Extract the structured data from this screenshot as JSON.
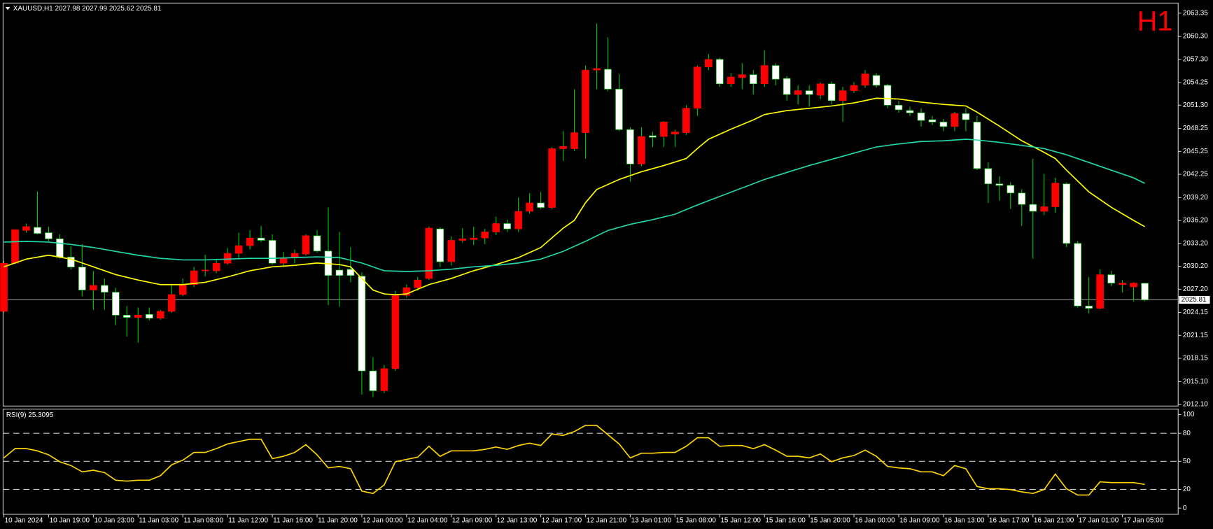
{
  "chart_data": {
    "type": "candlestick",
    "title": "XAUUSD,H1  2027.98 2027.99 2025.62 2025.81",
    "timeframe": "H1",
    "up_color": "#ff0000",
    "down_color": "#ffffff",
    "wick_color": "#00c800",
    "categories": [
      "10 Jan 2024",
      null,
      null,
      null,
      "10 Jan 19:00",
      null,
      null,
      null,
      "10 Jan 23:00",
      null,
      null,
      null,
      "11 Jan 03:00",
      null,
      null,
      null,
      "11 Jan 08:00",
      null,
      null,
      null,
      "11 Jan 12:00",
      null,
      null,
      null,
      "11 Jan 16:00",
      null,
      null,
      null,
      "11 Jan 20:00",
      null,
      null,
      null,
      "12 Jan 00:00",
      null,
      null,
      null,
      "12 Jan 04:00",
      null,
      null,
      null,
      "12 Jan 09:00",
      null,
      null,
      null,
      "12 Jan 13:00",
      null,
      null,
      null,
      "12 Jan 17:00",
      null,
      null,
      null,
      "12 Jan 21:00",
      null,
      null,
      null,
      "13 Jan 01:00",
      null,
      null,
      null,
      "15 Jan 08:00",
      null,
      null,
      null,
      "15 Jan 12:00",
      null,
      null,
      null,
      "15 Jan 16:00",
      null,
      null,
      null,
      "15 Jan 20:00",
      null,
      null,
      null,
      "16 Jan 00:00",
      null,
      null,
      null,
      "16 Jan 09:00",
      null,
      null,
      null,
      "16 Jan 13:00",
      null,
      null,
      null,
      "16 Jan 17:00",
      null,
      null,
      null,
      "16 Jan 21:00",
      null,
      null,
      null,
      "17 Jan 01:00",
      null,
      null,
      null,
      "17 Jan 05:00",
      null,
      null
    ],
    "open": [
      2024.3,
      2030.6,
      2034.9,
      2035.3,
      2034.6,
      2033.8,
      2031.4,
      2030.1,
      2027.1,
      2027.7,
      2026.8,
      2023.8,
      2023.5,
      2023.9,
      2023.4,
      2024.3,
      2026.5,
      2027.8,
      2029.6,
      2029.6,
      2030.6,
      2031.9,
      2032.9,
      2033.9,
      2033.6,
      2030.6,
      2031.3,
      2031.8,
      2034.2,
      2032.2,
      2029.7,
      2029.8,
      2028.9,
      2016.5,
      2013.9,
      2016.8,
      2026.4,
      2027.4,
      2028.6,
      2035.1,
      2030.8,
      2033.6,
      2033.7,
      2033.9,
      2034.7,
      2035.8,
      2035.1,
      2037.4,
      2038.5,
      2037.9,
      2045.6,
      2045.6,
      2047.7,
      2055.9,
      2056.0,
      2053.4,
      2048.1,
      2043.6,
      2047.3,
      2047.2,
      2047.5,
      2047.7,
      2050.9,
      2056.3,
      2057.3,
      2054.1,
      2054.9,
      2055.3,
      2054.1,
      2056.5,
      2054.8,
      2052.7,
      2053.2,
      2052.6,
      2054.1,
      2051.9,
      2053.2,
      2053.9,
      2055.2,
      2053.9,
      2051.3,
      2050.6,
      2050.3,
      2049.4,
      2049.1,
      2048.5,
      2050.2,
      2049.1,
      2043.0,
      2041.0,
      2040.8,
      2039.8,
      2038.3,
      2037.4,
      2038.0,
      2041.0,
      2033.2,
      2025.0,
      2024.7,
      2029.1,
      2027.8,
      2027.5,
      2027.98
    ],
    "high": [
      2030.9,
      2035.0,
      2035.8,
      2040.0,
      2035.4,
      2034.4,
      2032.8,
      2033.1,
      2029.6,
      2028.6,
      2027.4,
      2025.0,
      2024.8,
      2024.8,
      2024.5,
      2027.8,
      2028.6,
      2030.1,
      2031.7,
      2031.2,
      2032.6,
      2034.6,
      2034.9,
      2035.5,
      2034.4,
      2032.1,
      2032.4,
      2034.4,
      2034.9,
      2037.9,
      2034.7,
      2032.7,
      2029.4,
      2018.3,
      2017.3,
      2027.0,
      2027.8,
      2028.8,
      2035.4,
      2035.3,
      2034.1,
      2035.2,
      2035.4,
      2035.1,
      2036.7,
      2036.3,
      2039.2,
      2039.8,
      2039.9,
      2045.8,
      2047.9,
      2053.4,
      2056.5,
      2062.0,
      2060.2,
      2055.4,
      2048.4,
      2048.4,
      2047.8,
      2049.2,
      2048.1,
      2051.3,
      2056.5,
      2058.0,
      2057.5,
      2055.5,
      2056.8,
      2055.9,
      2058.5,
      2056.8,
      2055.1,
      2053.9,
      2053.9,
      2054.3,
      2054.4,
      2053.7,
      2054.3,
      2055.9,
      2055.5,
      2054.1,
      2051.9,
      2051.1,
      2050.9,
      2049.9,
      2049.5,
      2050.4,
      2050.9,
      2049.9,
      2043.8,
      2042.0,
      2041.2,
      2040.3,
      2044.3,
      2042.3,
      2041.8,
      2041.2,
      2033.5,
      2028.8,
      2029.8,
      2029.6,
      2028.4,
      2028.1,
      2027.99
    ],
    "low": [
      2024.2,
      2030.5,
      2034.6,
      2034.4,
      2033.5,
      2031.2,
      2029.8,
      2026.3,
      2024.5,
      2024.5,
      2022.5,
      2021.0,
      2020.2,
      2023.1,
      2023.2,
      2024.1,
      2026.3,
      2027.5,
      2028.9,
      2029.3,
      2030.4,
      2031.3,
      2032.4,
      2033.4,
      2030.4,
      2030.1,
      2030.6,
      2031.6,
      2032.0,
      2025.1,
      2024.9,
      2028.1,
      2013.4,
      2013.1,
      2013.6,
      2016.5,
      2026.1,
      2027.0,
      2028.4,
      2030.1,
      2030.3,
      2033.3,
      2033.0,
      2033.1,
      2034.3,
      2034.7,
      2034.7,
      2037.1,
      2037.7,
      2037.7,
      2044.0,
      2045.3,
      2044.3,
      2053.4,
      2053.1,
      2047.9,
      2041.3,
      2043.3,
      2045.8,
      2045.8,
      2045.8,
      2047.4,
      2049.9,
      2055.9,
      2053.7,
      2053.7,
      2053.4,
      2052.7,
      2053.7,
      2053.9,
      2051.9,
      2051.4,
      2051.1,
      2052.1,
      2051.4,
      2049.1,
      2052.9,
      2053.6,
      2053.6,
      2050.9,
      2050.3,
      2049.9,
      2048.5,
      2048.7,
      2047.9,
      2047.9,
      2047.9,
      2042.8,
      2038.5,
      2038.8,
      2037.7,
      2035.5,
      2031.2,
      2036.9,
      2037.2,
      2032.7,
      2024.8,
      2024.0,
      2024.6,
      2027.6,
      2026.8,
      2025.6,
      2025.62
    ],
    "close": [
      2030.6,
      2035.0,
      2035.4,
      2034.5,
      2033.8,
      2031.4,
      2030.1,
      2027.1,
      2027.7,
      2026.8,
      2023.8,
      2023.5,
      2023.8,
      2023.4,
      2024.3,
      2026.5,
      2027.8,
      2029.6,
      2029.7,
      2030.6,
      2031.9,
      2032.9,
      2033.9,
      2033.6,
      2030.6,
      2031.3,
      2031.9,
      2034.2,
      2032.2,
      2029.0,
      2029.0,
      2029.0,
      2016.5,
      2013.9,
      2016.8,
      2026.4,
      2027.4,
      2028.4,
      2035.2,
      2030.8,
      2033.6,
      2033.8,
      2033.9,
      2034.7,
      2035.8,
      2035.1,
      2037.4,
      2038.5,
      2037.9,
      2045.6,
      2045.9,
      2047.7,
      2055.9,
      2056.1,
      2053.4,
      2048.1,
      2043.6,
      2047.2,
      2047.1,
      2049.1,
      2047.8,
      2050.9,
      2056.3,
      2057.3,
      2054.1,
      2055.0,
      2055.3,
      2054.1,
      2056.5,
      2054.7,
      2052.7,
      2053.2,
      2052.7,
      2054.1,
      2051.9,
      2053.2,
      2053.9,
      2055.4,
      2053.9,
      2051.3,
      2050.7,
      2050.3,
      2049.3,
      2049.1,
      2048.5,
      2050.2,
      2049.4,
      2043.0,
      2041.0,
      2040.8,
      2039.8,
      2038.3,
      2037.4,
      2038.0,
      2041.1,
      2033.2,
      2025.0,
      2024.7,
      2029.1,
      2028.0,
      2028.0,
      2028.0,
      2025.81
    ],
    "ylim": [
      2011.9,
      2064.67
    ],
    "yticks": [
      2063.35,
      {
        "value": 2060.3,
        "label": "2060.30"
      },
      {
        "value": 2057.3,
        "label": "2057.30"
      },
      2054.25,
      {
        "value": 2051.3,
        "label": "2051.30"
      },
      2048.25,
      2045.25,
      2042.25,
      {
        "value": 2039.2,
        "label": "2039.20"
      },
      {
        "value": 2036.2,
        "label": "2036.20"
      },
      {
        "value": 2033.2,
        "label": "2033.20"
      },
      {
        "value": 2030.2,
        "label": "2030.20"
      },
      {
        "value": 2027.2,
        "label": "2027.20"
      },
      2024.15,
      2021.15,
      2018.15,
      {
        "value": 2015.1,
        "label": "2015.10"
      },
      {
        "value": 2012.1,
        "label": "2012.10"
      }
    ],
    "last_price": 2025.81,
    "lines": [
      {
        "color": "#ffff00",
        "x": [
          0,
          2,
          4,
          6,
          8,
          10,
          12,
          14,
          16,
          18,
          20,
          22,
          24,
          26,
          28,
          30,
          31,
          32,
          33,
          34,
          35,
          36,
          38,
          40,
          42,
          44,
          46,
          48,
          50,
          51,
          52,
          53,
          55,
          57,
          59,
          61,
          62,
          63,
          65,
          67,
          68,
          70,
          72,
          74,
          76,
          78,
          80,
          82,
          84,
          86,
          87,
          89,
          91,
          93,
          94,
          95,
          97,
          99,
          101,
          102
        ],
        "values": [
          2030.13,
          2031.14,
          2031.65,
          2031.14,
          2030.13,
          2029.11,
          2028.4,
          2027.8,
          2027.8,
          2028.1,
          2028.81,
          2029.62,
          2030.13,
          2030.33,
          2030.63,
          2030.43,
          2030.13,
          2028.61,
          2027.09,
          2026.58,
          2026.48,
          2026.58,
          2027.8,
          2028.61,
          2029.62,
          2030.43,
          2031.34,
          2032.66,
          2035.19,
          2036.21,
          2038.53,
          2040.26,
          2041.57,
          2042.58,
          2043.4,
          2044.31,
          2045.62,
          2046.84,
          2048.16,
          2049.37,
          2050.08,
          2050.59,
          2050.89,
          2051.2,
          2051.6,
          2052.21,
          2052.11,
          2051.7,
          2051.4,
          2051.2,
          2050.39,
          2048.56,
          2046.64,
          2045.12,
          2044.31,
          2042.79,
          2039.95,
          2037.93,
          2036.21,
          2035.39
        ]
      },
      {
        "color": "#20d8a8",
        "x": [
          0,
          2,
          4,
          6,
          8,
          10,
          12,
          14,
          16,
          18,
          20,
          22,
          24,
          26,
          28,
          30,
          32,
          34,
          36,
          38,
          40,
          42,
          44,
          46,
          48,
          50,
          52,
          54,
          56,
          58,
          60,
          62,
          64,
          66,
          68,
          70,
          72,
          74,
          76,
          78,
          80,
          82,
          84,
          86,
          87,
          89,
          91,
          93,
          95,
          97,
          99,
          101,
          102
        ],
        "values": [
          2033.37,
          2033.47,
          2033.37,
          2033.06,
          2032.66,
          2032.15,
          2031.65,
          2031.24,
          2031.04,
          2031.04,
          2031.14,
          2031.24,
          2031.24,
          2031.34,
          2031.44,
          2031.34,
          2030.63,
          2029.62,
          2029.52,
          2029.62,
          2029.82,
          2030.13,
          2030.33,
          2030.63,
          2031.14,
          2032.15,
          2033.47,
          2034.89,
          2035.7,
          2036.31,
          2037.02,
          2038.23,
          2039.35,
          2040.46,
          2041.57,
          2042.49,
          2043.4,
          2044.21,
          2045.02,
          2045.83,
          2046.23,
          2046.54,
          2046.64,
          2046.84,
          2046.74,
          2046.43,
          2046.03,
          2045.62,
          2044.81,
          2043.8,
          2042.79,
          2041.78,
          2041.07
        ]
      }
    ],
    "rsi": {
      "label": "RSI(9) 25.3095",
      "color": "#ffd700",
      "ylim": [
        -6.6,
        105.8
      ],
      "yticks": [
        100,
        80,
        50,
        20,
        0
      ],
      "levels": [
        80,
        50,
        20
      ],
      "values": [
        53.7,
        63.6,
        63.6,
        61.2,
        57,
        49.6,
        45.5,
        38.8,
        40.5,
        38,
        29.8,
        28.9,
        29.8,
        29.8,
        34.7,
        46.3,
        51.2,
        59.5,
        59.5,
        63.6,
        68.6,
        71.1,
        73.6,
        73.6,
        52.9,
        55.4,
        59.5,
        67.8,
        57,
        43,
        44.6,
        42.1,
        18.2,
        15.7,
        24.8,
        49.6,
        52.1,
        54.5,
        66.1,
        55.4,
        61.2,
        61.2,
        61.2,
        62.8,
        65.3,
        62.8,
        66.9,
        69.4,
        66.9,
        79.3,
        77.7,
        81.8,
        88.4,
        88.4,
        78.5,
        68.6,
        53.7,
        58.7,
        58.7,
        59.5,
        59.5,
        66.1,
        75.2,
        75.2,
        66.1,
        66.9,
        66.9,
        63.6,
        67.8,
        62,
        55.4,
        55.4,
        53.7,
        57.9,
        49.6,
        53.7,
        56.2,
        62,
        55.4,
        44.6,
        43,
        42.1,
        38.8,
        38.8,
        34.7,
        45.5,
        42.1,
        23.1,
        20.7,
        20.7,
        19.8,
        17.4,
        15.7,
        19.8,
        36.4,
        20.7,
        14,
        14,
        28.1,
        27.3,
        27.3,
        27.3,
        25.31
      ]
    }
  }
}
